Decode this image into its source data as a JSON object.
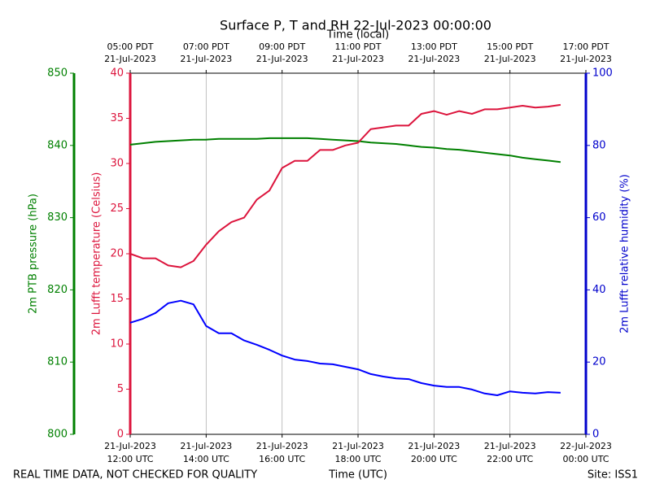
{
  "chart_data": {
    "type": "line",
    "title": "Surface P, T and RH 22-Jul-2023 00:00:00",
    "xlabel": "Time (UTC)",
    "x2label": "Time (local)",
    "ylabel": "2m Lufft temperature (Celsius)",
    "y2label": "2m Lufft relative humidity (%)",
    "y3label": "2m PTB pressure (hPa)",
    "footer_left": "REAL TIME DATA, NOT CHECKED FOR QUALITY",
    "footer_right": "Site: ISS1",
    "grid": true,
    "xlim": [
      "21-Jul-2023 12:00",
      "22-Jul-2023 00:00"
    ],
    "xticks": [
      {
        "value": "21-Jul-2023 12:00",
        "label": [
          "21-Jul-2023",
          "12:00 UTC"
        ]
      },
      {
        "value": "21-Jul-2023 14:00",
        "label": [
          "21-Jul-2023",
          "14:00 UTC"
        ]
      },
      {
        "value": "21-Jul-2023 16:00",
        "label": [
          "21-Jul-2023",
          "16:00 UTC"
        ]
      },
      {
        "value": "21-Jul-2023 18:00",
        "label": [
          "21-Jul-2023",
          "18:00 UTC"
        ]
      },
      {
        "value": "21-Jul-2023 20:00",
        "label": [
          "21-Jul-2023",
          "20:00 UTC"
        ]
      },
      {
        "value": "21-Jul-2023 22:00",
        "label": [
          "21-Jul-2023",
          "22:00 UTC"
        ]
      },
      {
        "value": "22-Jul-2023 00:00",
        "label": [
          "22-Jul-2023",
          "00:00 UTC"
        ]
      }
    ],
    "x2ticks": [
      {
        "value": "21-Jul-2023 12:00",
        "label": [
          "05:00 PDT",
          "21-Jul-2023"
        ]
      },
      {
        "value": "21-Jul-2023 14:00",
        "label": [
          "07:00 PDT",
          "21-Jul-2023"
        ]
      },
      {
        "value": "21-Jul-2023 16:00",
        "label": [
          "09:00 PDT",
          "21-Jul-2023"
        ]
      },
      {
        "value": "21-Jul-2023 18:00",
        "label": [
          "11:00 PDT",
          "21-Jul-2023"
        ]
      },
      {
        "value": "21-Jul-2023 20:00",
        "label": [
          "13:00 PDT",
          "21-Jul-2023"
        ]
      },
      {
        "value": "21-Jul-2023 22:00",
        "label": [
          "15:00 PDT",
          "21-Jul-2023"
        ]
      },
      {
        "value": "22-Jul-2023 00:00",
        "label": [
          "17:00 PDT",
          "21-Jul-2023"
        ]
      }
    ],
    "ylim": [
      0,
      40
    ],
    "yticks": [
      0,
      5,
      10,
      15,
      20,
      25,
      30,
      35,
      40
    ],
    "ycolor": "#dc143c",
    "y2lim": [
      0,
      100
    ],
    "y2ticks": [
      0,
      20,
      40,
      60,
      80,
      100
    ],
    "y2color": "#0000cc",
    "y3lim": [
      800,
      850
    ],
    "y3ticks": [
      800,
      810,
      820,
      830,
      840,
      850
    ],
    "y3color": "#008000",
    "x": [
      "21-Jul-2023 12:00",
      "21-Jul-2023 12:20",
      "21-Jul-2023 12:40",
      "21-Jul-2023 13:00",
      "21-Jul-2023 13:20",
      "21-Jul-2023 13:40",
      "21-Jul-2023 14:00",
      "21-Jul-2023 14:20",
      "21-Jul-2023 14:40",
      "21-Jul-2023 15:00",
      "21-Jul-2023 15:20",
      "21-Jul-2023 15:40",
      "21-Jul-2023 16:00",
      "21-Jul-2023 16:20",
      "21-Jul-2023 16:40",
      "21-Jul-2023 17:00",
      "21-Jul-2023 17:20",
      "21-Jul-2023 17:40",
      "21-Jul-2023 18:00",
      "21-Jul-2023 18:20",
      "21-Jul-2023 18:40",
      "21-Jul-2023 19:00",
      "21-Jul-2023 19:20",
      "21-Jul-2023 19:40",
      "21-Jul-2023 20:00",
      "21-Jul-2023 20:20",
      "21-Jul-2023 20:40",
      "21-Jul-2023 21:00",
      "21-Jul-2023 21:20",
      "21-Jul-2023 21:40",
      "21-Jul-2023 22:00",
      "21-Jul-2023 22:20",
      "21-Jul-2023 22:40",
      "21-Jul-2023 23:00",
      "21-Jul-2023 23:20"
    ],
    "series": [
      {
        "color": "#008000",
        "axis": "y3",
        "values": [
          840.1,
          840.3,
          840.5,
          840.6,
          840.7,
          840.8,
          840.8,
          840.9,
          840.9,
          840.9,
          840.9,
          841.0,
          841.0,
          841.0,
          841.0,
          840.9,
          840.8,
          840.7,
          840.6,
          840.4,
          840.3,
          840.2,
          840.0,
          839.8,
          839.7,
          839.5,
          839.4,
          839.2,
          839.0,
          838.8,
          838.6,
          838.3,
          838.1,
          837.9,
          837.7
        ]
      },
      {
        "color": "#dc143c",
        "axis": "y",
        "values": [
          20,
          19.5,
          19.5,
          18.7,
          18.5,
          19.2,
          21,
          22.5,
          23.5,
          24,
          26,
          27,
          29.5,
          30.3,
          30.3,
          31.5,
          31.5,
          32,
          32.3,
          33.8,
          34,
          34.2,
          34.2,
          35.5,
          35.8,
          35.4,
          35.8,
          35.5,
          36,
          36,
          36.2,
          36.4,
          36.2,
          36.3,
          36.5
        ]
      },
      {
        "color": "#0000ff",
        "axis": "y2",
        "values": [
          30.9,
          32,
          33.6,
          36.3,
          37,
          36,
          30,
          28,
          28,
          26,
          24.8,
          23.4,
          21.8,
          20.7,
          20.3,
          19.6,
          19.4,
          18.7,
          18,
          16.7,
          16,
          15.5,
          15.3,
          14.2,
          13.5,
          13.1,
          13.1,
          12.4,
          11.3,
          10.8,
          11.9,
          11.5,
          11.3,
          11.7,
          11.5
        ]
      }
    ]
  }
}
